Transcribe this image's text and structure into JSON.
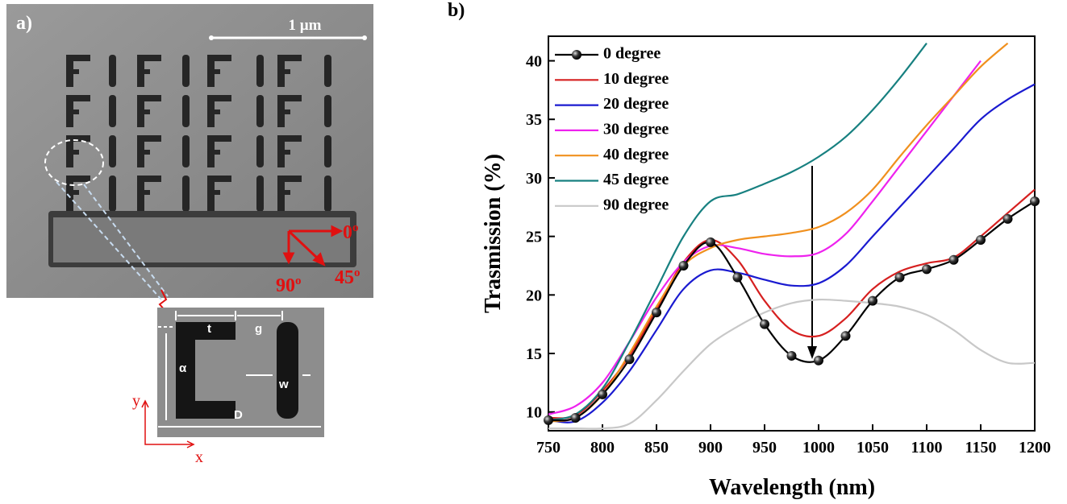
{
  "panel_a": {
    "panel_label": "a)",
    "scale_bar": "1 µm",
    "angle_labels": [
      {
        "value": "0",
        "sup": "o"
      },
      {
        "value": "45",
        "sup": "o"
      },
      {
        "value": "90",
        "sup": "o"
      }
    ],
    "dimension_labels": [
      "t",
      "g",
      "w",
      "α",
      "D"
    ],
    "axis_labels": [
      "y",
      "x"
    ]
  },
  "panel_b": {
    "panel_label": "b)"
  },
  "chart_data": {
    "type": "line",
    "x_label": "Wavelength (nm)",
    "y_label": "Trasmission (%)",
    "x": [
      750,
      775,
      800,
      825,
      850,
      875,
      900,
      925,
      950,
      975,
      1000,
      1025,
      1050,
      1075,
      1100,
      1125,
      1150,
      1175,
      1200
    ],
    "xlim": [
      750,
      1200
    ],
    "xticks": [
      750,
      800,
      850,
      900,
      950,
      1000,
      1050,
      1100,
      1150,
      1200
    ],
    "ylim": [
      8.4,
      42.1
    ],
    "yticks": [
      10,
      15,
      20,
      25,
      30,
      35,
      40
    ],
    "legend": "upper left",
    "series": [
      {
        "name": "0 degree",
        "color": "#000000",
        "marker": "sphere",
        "values": [
          9.3,
          9.5,
          11.5,
          14.5,
          18.5,
          22.5,
          24.5,
          21.5,
          17.5,
          14.8,
          14.4,
          16.5,
          19.5,
          21.5,
          22.2,
          23,
          24.7,
          26.5,
          28
        ]
      },
      {
        "name": "10 degree",
        "color": "#d62020",
        "values": [
          9.5,
          9.7,
          11.8,
          14.8,
          18.8,
          22.8,
          24.7,
          23,
          19.5,
          17,
          16.5,
          18,
          20.5,
          22,
          22.7,
          23.2,
          25,
          27,
          29
        ]
      },
      {
        "name": "20 degree",
        "color": "#1a1ad0",
        "values": [
          9.3,
          9.2,
          10.8,
          13.5,
          17,
          20.5,
          22.1,
          21.9,
          21.3,
          20.8,
          21,
          22.5,
          25,
          27.5,
          30,
          32.5,
          35,
          36.7,
          38
        ]
      },
      {
        "name": "30 degree",
        "color": "#ee22ee",
        "values": [
          9.8,
          10.5,
          12.5,
          16,
          19.8,
          22.8,
          24.2,
          24,
          23.5,
          23.3,
          23.6,
          25.2,
          28,
          31,
          34,
          37,
          40,
          null,
          null
        ]
      },
      {
        "name": "40 degree",
        "color": "#f0901e",
        "values": [
          9.2,
          9.5,
          11.5,
          15,
          19,
          22.5,
          24,
          24.7,
          25,
          25.3,
          25.8,
          27,
          29,
          31.8,
          34.5,
          37,
          39.5,
          41.5,
          null
        ]
      },
      {
        "name": "45 degree",
        "color": "#178080",
        "values": [
          9.3,
          9.8,
          12,
          16,
          20.5,
          25,
          28,
          28.6,
          29.5,
          30.5,
          31.8,
          33.5,
          35.8,
          38.5,
          41.5,
          null,
          null,
          null,
          null
        ]
      },
      {
        "name": "90 degree",
        "color": "#c8c8c8",
        "values": [
          8.6,
          8.6,
          8.6,
          9,
          11,
          13.5,
          15.8,
          17.3,
          18.5,
          19.3,
          19.6,
          19.5,
          19.3,
          19,
          18.3,
          17,
          15.3,
          14.2,
          14.2
        ]
      }
    ]
  }
}
